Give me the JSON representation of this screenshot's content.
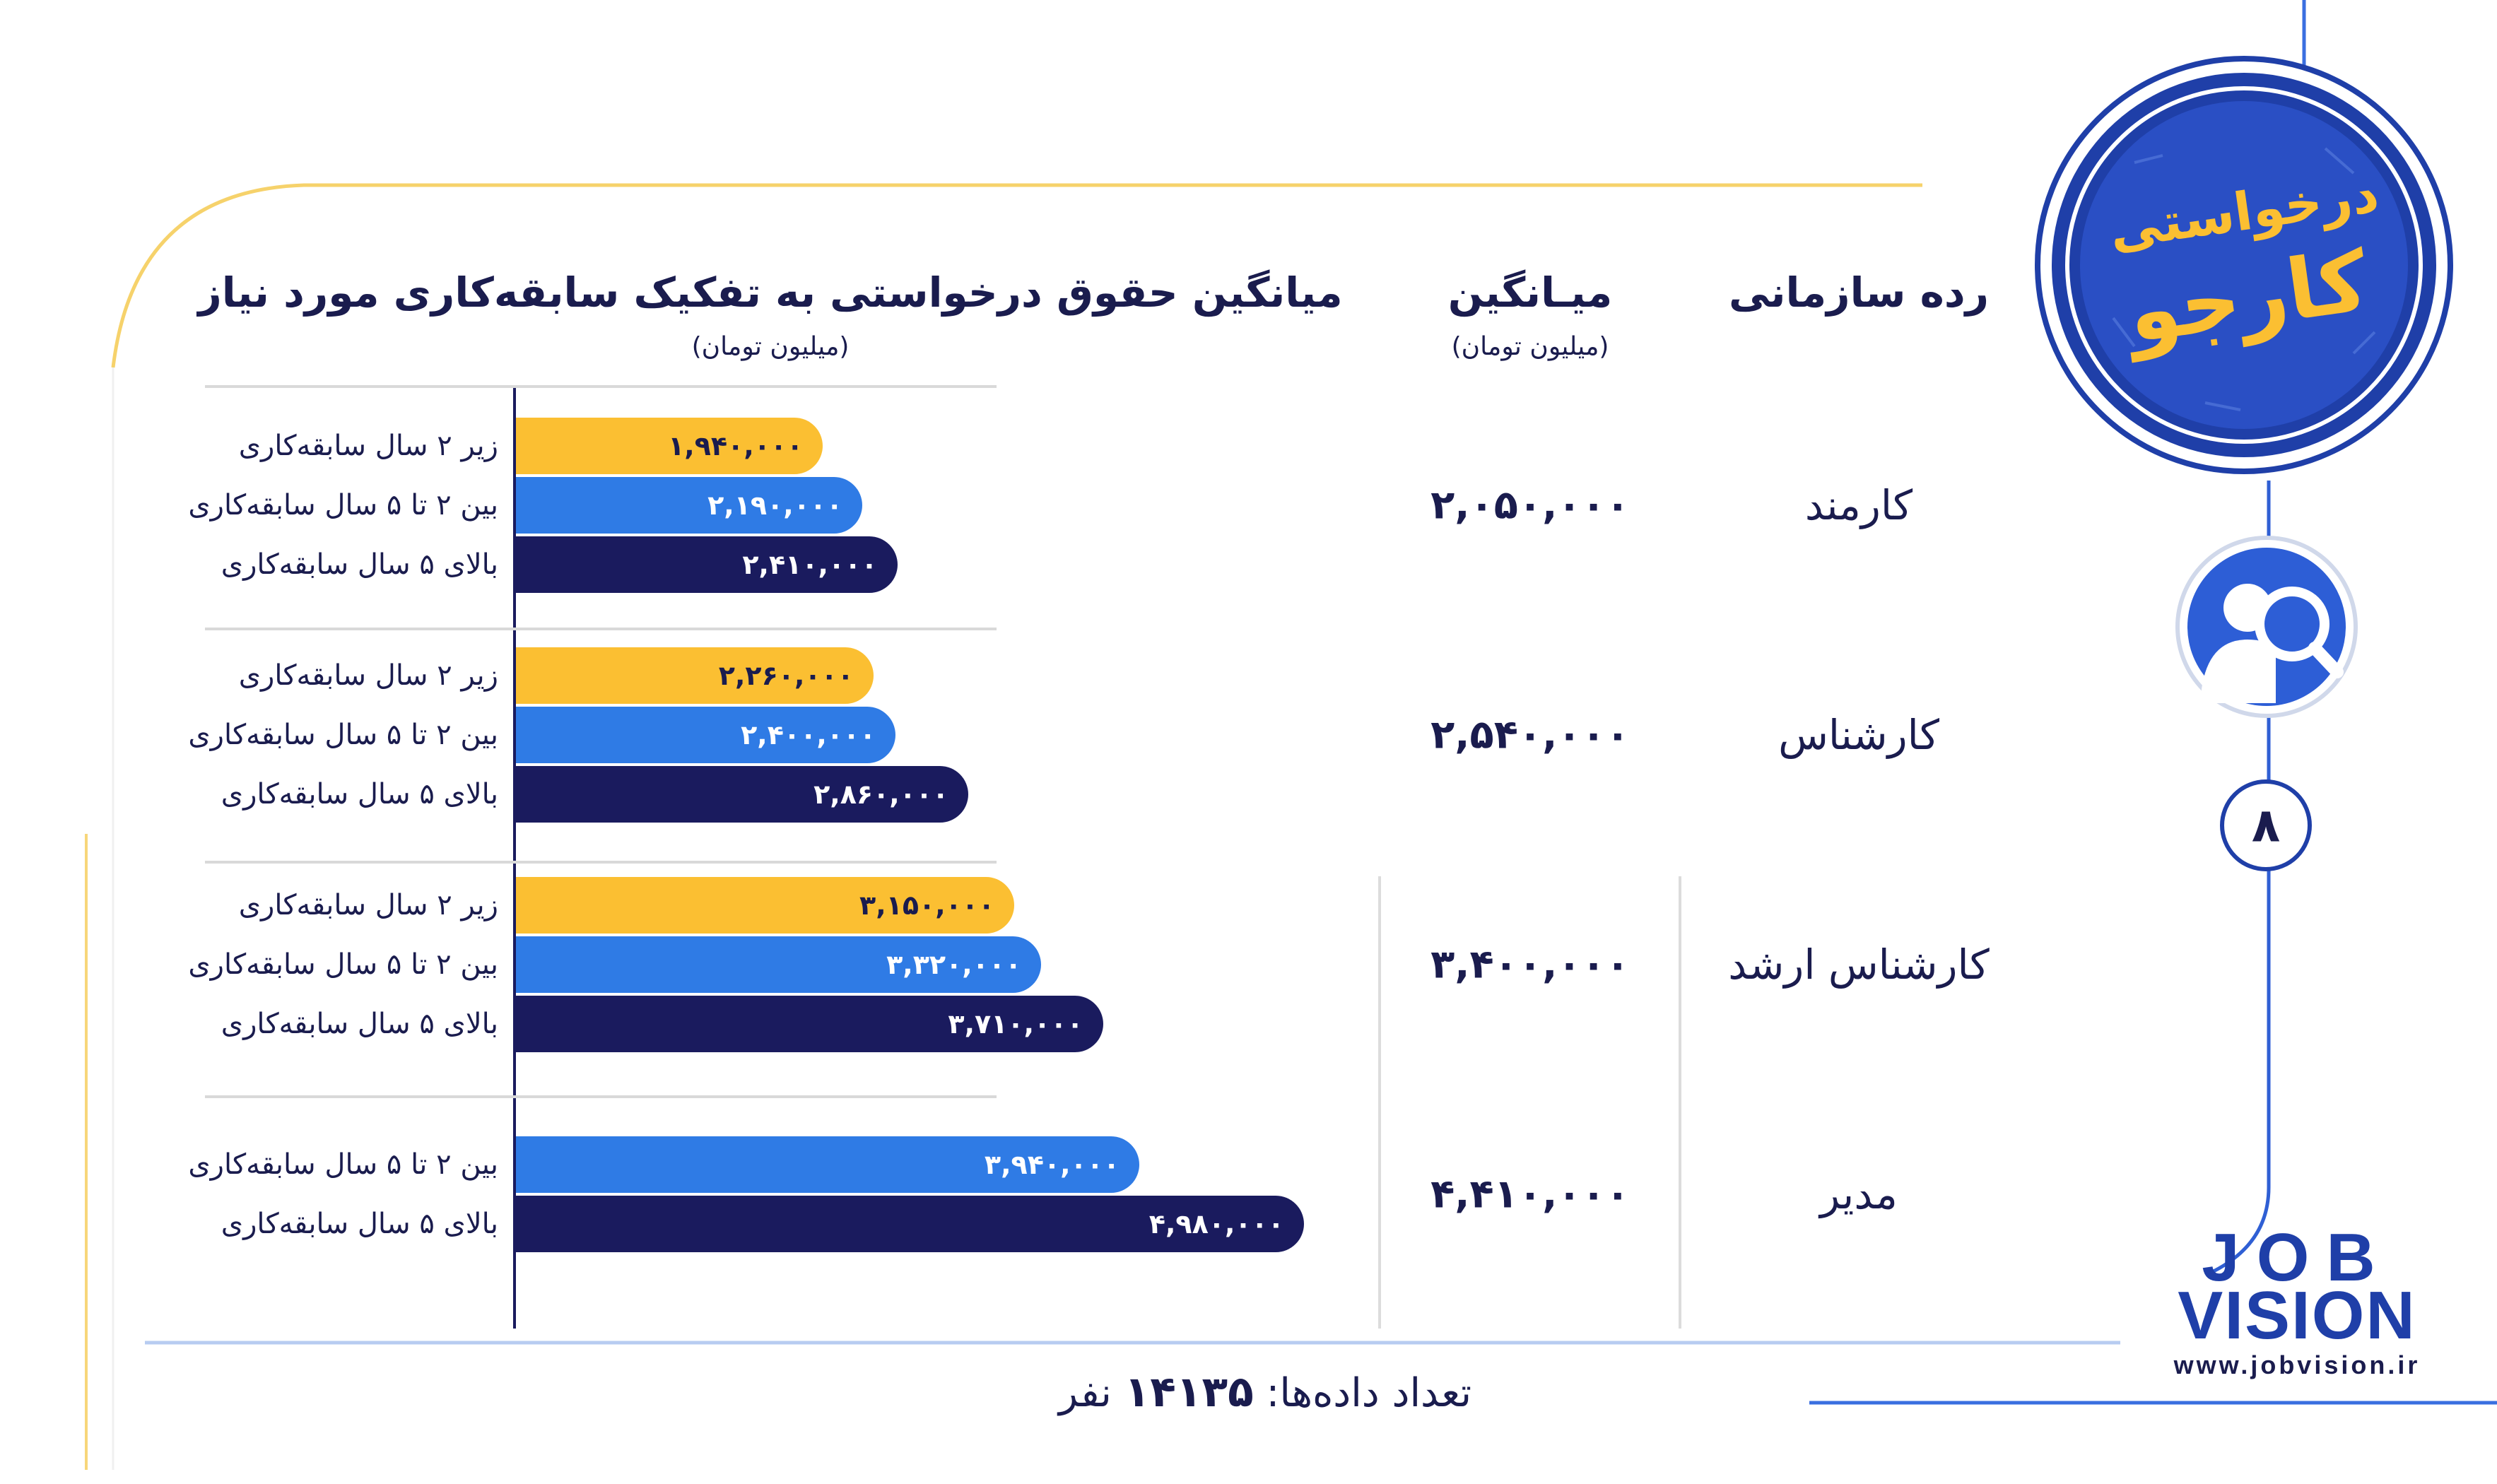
{
  "headers": {
    "category": "رده سازمانی",
    "average": "میـانگین",
    "average_unit": "(میلیون تومان)",
    "breakdown": "میانگین حقوق درخواستی به تفکیک سابقه‌کاری مورد نیاز",
    "breakdown_unit": "(میلیون تومان)"
  },
  "badge": {
    "top": "درخواستی",
    "bottom": "کارجو"
  },
  "page_number": "۸",
  "brand": {
    "line1": "JOB",
    "line2": "VISION",
    "url": "www.jobvision.ir"
  },
  "footer": {
    "label": "تعداد داده‌ها:",
    "count": "۱۴۱۳۵",
    "unit": "نفر"
  },
  "colors": {
    "yellow": "#fbbf32",
    "blue": "#2f7be5",
    "navy": "#1a1b5e",
    "text": "#1a1c4e"
  },
  "icons": [
    "user-search-icon"
  ],
  "chart_data": {
    "type": "bar",
    "orientation": "horizontal",
    "groups": [
      {
        "category": "کارمند",
        "average": 2050000,
        "average_label": "۲,۰۵۰,۰۰۰",
        "bars": [
          {
            "label": "زیر ۲ سال سابقه‌کاری",
            "value": 1940000,
            "value_label": "۱,۹۴۰,۰۰۰",
            "color": "#fbbf32"
          },
          {
            "label": "بین ۲ تا ۵ سال سابقه‌کاری",
            "value": 2190000,
            "value_label": "۲,۱۹۰,۰۰۰",
            "color": "#2f7be5"
          },
          {
            "label": "بالای ۵ سال سابقه‌کاری",
            "value": 2410000,
            "value_label": "۲,۴۱۰,۰۰۰",
            "color": "#1a1b5e"
          }
        ]
      },
      {
        "category": "کارشناس",
        "average": 2540000,
        "average_label": "۲,۵۴۰,۰۰۰",
        "bars": [
          {
            "label": "زیر ۲ سال سابقه‌کاری",
            "value": 2260000,
            "value_label": "۲,۲۶۰,۰۰۰",
            "color": "#fbbf32"
          },
          {
            "label": "بین ۲ تا ۵ سال سابقه‌کاری",
            "value": 2400000,
            "value_label": "۲,۴۰۰,۰۰۰",
            "color": "#2f7be5"
          },
          {
            "label": "بالای ۵ سال سابقه‌کاری",
            "value": 2860000,
            "value_label": "۲,۸۶۰,۰۰۰",
            "color": "#1a1b5e"
          }
        ]
      },
      {
        "category": "کارشناس ارشد",
        "average": 3400000,
        "average_label": "۳,۴۰۰,۰۰۰",
        "bars": [
          {
            "label": "زیر ۲ سال سابقه‌کاری",
            "value": 3150000,
            "value_label": "۳,۱۵۰,۰۰۰",
            "color": "#fbbf32"
          },
          {
            "label": "بین ۲ تا ۵ سال سابقه‌کاری",
            "value": 3320000,
            "value_label": "۳,۳۲۰,۰۰۰",
            "color": "#2f7be5"
          },
          {
            "label": "بالای ۵ سال سابقه‌کاری",
            "value": 3710000,
            "value_label": "۳,۷۱۰,۰۰۰",
            "color": "#1a1b5e"
          }
        ]
      },
      {
        "category": "مدیر",
        "average": 4410000,
        "average_label": "۴,۴۱۰,۰۰۰",
        "bars": [
          {
            "label": "بین ۲ تا ۵ سال سابقه‌کاری",
            "value": 3940000,
            "value_label": "۳,۹۴۰,۰۰۰",
            "color": "#2f7be5"
          },
          {
            "label": "بالای ۵ سال سابقه‌کاری",
            "value": 4980000,
            "value_label": "۴,۹۸۰,۰۰۰",
            "color": "#1a1b5e"
          }
        ]
      }
    ],
    "legend": "none"
  }
}
